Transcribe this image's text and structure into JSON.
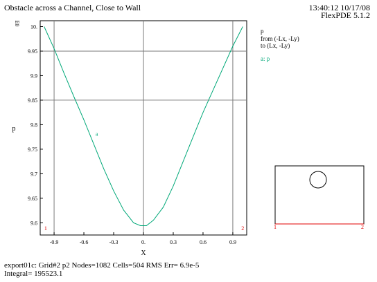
{
  "header": {
    "title": "Obstacle across a Channel, Close to Wall",
    "time": "13:40:12 10/17/08",
    "version": "FlexPDE 5.1.2"
  },
  "legend": {
    "title": "p",
    "from": "from (-Lx, -Ly)",
    "to": "to (Lx, -Ly)",
    "series_label": "a: p"
  },
  "footer": {
    "line1": "export01c:  Grid#2  p2  Nodes=1082 Cells=504 RMS Err= 6.9e-5",
    "line2": "Integral=  195523.1"
  },
  "colors": {
    "series": "#00a878",
    "markers": "#e00000",
    "grid": "#7a7a7a"
  },
  "chart_data": {
    "type": "line",
    "xlabel": "X",
    "ylabel": "p",
    "y_scale_label": "E0",
    "xlim": [
      -1.04,
      1.04
    ],
    "ylim": [
      9.575,
      10.012
    ],
    "x_ticks": [
      -0.9,
      -0.6,
      -0.3,
      0,
      0.3,
      0.6,
      0.9
    ],
    "x_tick_labels": [
      "-0.9",
      "-0.6",
      "-0.3",
      "0.",
      "0.3",
      "0.6",
      "0.9"
    ],
    "y_ticks": [
      9.6,
      9.65,
      9.7,
      9.75,
      9.8,
      9.85,
      9.9,
      9.95,
      10.0
    ],
    "y_tick_labels": [
      "9.6",
      "9.65",
      "9.7",
      "9.75",
      "9.8",
      "9.85",
      "9.9",
      "9.95",
      "10."
    ],
    "grid_x": [
      -0.9,
      0,
      0.9
    ],
    "grid_y": [
      9.85,
      9.95
    ],
    "series": [
      {
        "label": "a",
        "label_at": [
          -0.47,
          9.777
        ],
        "x": [
          -1.0,
          -0.9,
          -0.8,
          -0.7,
          -0.6,
          -0.5,
          -0.4,
          -0.3,
          -0.2,
          -0.1,
          -0.03,
          0.03,
          0.1,
          0.2,
          0.3,
          0.4,
          0.5,
          0.6,
          0.7,
          0.8,
          0.9,
          1.0
        ],
        "y": [
          10.0,
          9.955,
          9.905,
          9.857,
          9.81,
          9.76,
          9.71,
          9.665,
          9.626,
          9.6,
          9.594,
          9.594,
          9.605,
          9.632,
          9.675,
          9.725,
          9.775,
          9.825,
          9.87,
          9.915,
          9.96,
          10.0
        ]
      }
    ],
    "point_markers": [
      {
        "label": "1",
        "at": [
          -0.985,
          9.585
        ]
      },
      {
        "label": "2",
        "at": [
          1.0,
          9.585
        ]
      }
    ]
  },
  "inset": {
    "markers": [
      "1",
      "2"
    ]
  }
}
